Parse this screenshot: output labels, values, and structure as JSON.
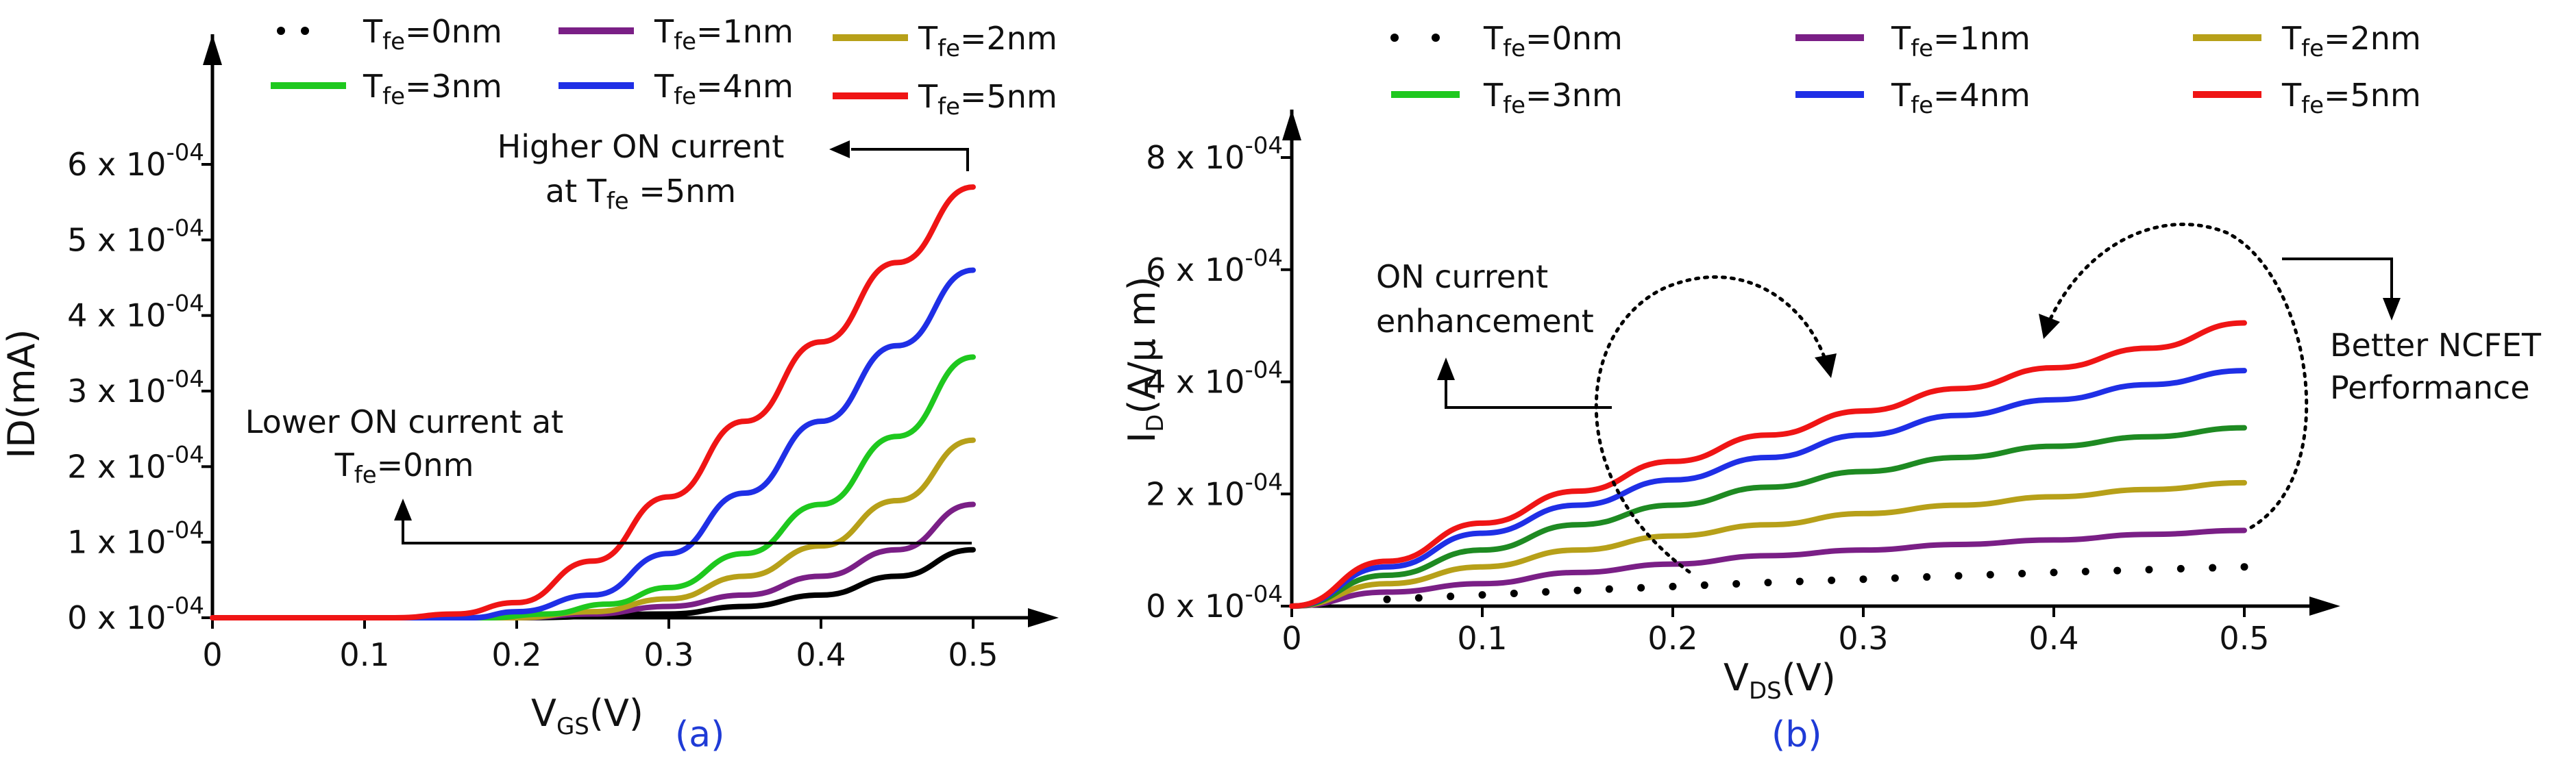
{
  "colors": {
    "t0": "#000000",
    "t1": "#7a1f86",
    "t2": "#b7a019",
    "t3": "#1ec81e",
    "t4": "#1f2fe6",
    "t5": "#ef1515",
    "t3b": "#1e8a22"
  },
  "chart_data": [
    {
      "type": "line",
      "panel_label": "(a)",
      "xlabel": {
        "main": "V",
        "sub": "GS",
        "rest": "(V)"
      },
      "ylabel": "ID(mA)",
      "xlim": [
        0,
        0.55
      ],
      "ylim": [
        0,
        0.00065
      ],
      "x_ticks": [
        "0",
        "0.1",
        "0.2",
        "0.3",
        "0.4",
        "0.5"
      ],
      "y_ticks": [
        {
          "value": 0,
          "mant": "0 x 10",
          "exp": "-04"
        },
        {
          "value": 0.0001,
          "mant": "1 x 10",
          "exp": "-04"
        },
        {
          "value": 0.0002,
          "mant": "2 x 10",
          "exp": "-04"
        },
        {
          "value": 0.0003,
          "mant": "3 x 10",
          "exp": "-04"
        },
        {
          "value": 0.0004,
          "mant": "4 x 10",
          "exp": "-04"
        },
        {
          "value": 0.0005,
          "mant": "5 x 10",
          "exp": "-04"
        },
        {
          "value": 0.0006,
          "mant": "6 x 10",
          "exp": "-04"
        }
      ],
      "legend": [
        {
          "pre": "T",
          "sub": "fe",
          "post": "=0nm",
          "style": "dots",
          "color": "#000000"
        },
        {
          "pre": "T",
          "sub": "fe",
          "post": "=1nm",
          "style": "line",
          "color": "#7a1f86"
        },
        {
          "pre": "T",
          "sub": "fe",
          "post": "=2nm",
          "style": "line",
          "color": "#b7a019"
        },
        {
          "pre": "T",
          "sub": "fe",
          "post": "=3nm",
          "style": "line",
          "color": "#1ec81e"
        },
        {
          "pre": "T",
          "sub": "fe",
          "post": "=4nm",
          "style": "line",
          "color": "#1f2fe6"
        },
        {
          "pre": "T",
          "sub": "fe",
          "post": "=5nm",
          "style": "line",
          "color": "#ef1515"
        }
      ],
      "series": [
        {
          "color": "#000000",
          "x": [
            0.0,
            0.2,
            0.3,
            0.35,
            0.4,
            0.45,
            0.5
          ],
          "y": [
            0.0,
            0.0,
            5e-06,
            1.5e-05,
            3e-05,
            5.5e-05,
            9e-05
          ]
        },
        {
          "color": "#7a1f86",
          "x": [
            0.0,
            0.2,
            0.25,
            0.3,
            0.35,
            0.4,
            0.45,
            0.5
          ],
          "y": [
            0.0,
            0.0,
            5e-06,
            1.5e-05,
            3e-05,
            5.5e-05,
            9e-05,
            0.00015
          ]
        },
        {
          "color": "#b7a019",
          "x": [
            0.0,
            0.2,
            0.25,
            0.3,
            0.35,
            0.4,
            0.45,
            0.5
          ],
          "y": [
            0.0,
            0.0,
            8e-06,
            2.5e-05,
            5.5e-05,
            9.5e-05,
            0.000155,
            0.000235
          ]
        },
        {
          "color": "#1ec81e",
          "x": [
            0.0,
            0.18,
            0.22,
            0.26,
            0.3,
            0.35,
            0.4,
            0.45,
            0.5
          ],
          "y": [
            0.0,
            0.0,
            5e-06,
            1.8e-05,
            4e-05,
            8.5e-05,
            0.00015,
            0.00024,
            0.000345
          ]
        },
        {
          "color": "#1f2fe6",
          "x": [
            0.0,
            0.17,
            0.2,
            0.25,
            0.3,
            0.35,
            0.4,
            0.45,
            0.5
          ],
          "y": [
            0.0,
            0.0,
            8e-06,
            3e-05,
            8.5e-05,
            0.000165,
            0.00026,
            0.00036,
            0.00046
          ]
        },
        {
          "color": "#ef1515",
          "x": [
            0.0,
            0.12,
            0.16,
            0.2,
            0.25,
            0.3,
            0.35,
            0.4,
            0.45,
            0.5
          ],
          "y": [
            0.0,
            0.0,
            5e-06,
            2e-05,
            7.5e-05,
            0.00016,
            0.00026,
            0.000365,
            0.00047,
            0.00057
          ]
        }
      ],
      "annotations": [
        {
          "lines": [
            "Higher ON current"
          ]
        },
        {
          "pre": "at T",
          "sub": "fe",
          "post": " =5nm"
        },
        {
          "lines": [
            "Lower ON current at"
          ]
        },
        {
          "pre": "T",
          "sub": "fe",
          "post": "=0nm"
        }
      ]
    },
    {
      "type": "line",
      "panel_label": "(b)",
      "xlabel": {
        "main": "V",
        "sub": "DS",
        "rest": "(V)"
      },
      "ylabel": {
        "main": "I",
        "sub": "D",
        "rest": "(A/μ m)"
      },
      "xlim": [
        0,
        0.55
      ],
      "ylim": [
        0,
        0.00095
      ],
      "x_ticks": [
        "0",
        "0.1",
        "0.2",
        "0.3",
        "0.4",
        "0.5"
      ],
      "y_ticks": [
        {
          "value": 0,
          "mant": "0 x 10",
          "exp": "-04"
        },
        {
          "value": 0.0002,
          "mant": "2 x 10",
          "exp": "-04"
        },
        {
          "value": 0.0004,
          "mant": "4 x 10",
          "exp": "-04"
        },
        {
          "value": 0.0006,
          "mant": "6 x 10",
          "exp": "-04"
        },
        {
          "value": 0.0008,
          "mant": "8 x 10",
          "exp": "-04"
        }
      ],
      "legend": [
        {
          "pre": "T",
          "sub": "fe",
          "post": "=0nm",
          "style": "dots",
          "color": "#000000"
        },
        {
          "pre": "T",
          "sub": "fe",
          "post": "=1nm",
          "style": "line",
          "color": "#7a1f86"
        },
        {
          "pre": "T",
          "sub": "fe",
          "post": "=2nm",
          "style": "line",
          "color": "#b7a019"
        },
        {
          "pre": "T",
          "sub": "fe",
          "post": "=3nm",
          "style": "line",
          "color": "#1ec81e"
        },
        {
          "pre": "T",
          "sub": "fe",
          "post": "=4nm",
          "style": "line",
          "color": "#1f2fe6"
        },
        {
          "pre": "T",
          "sub": "fe",
          "post": "=5nm",
          "style": "line",
          "color": "#ef1515"
        }
      ],
      "series": [
        {
          "color": "#000000",
          "style": "dots",
          "x": [
            0.0,
            0.05,
            0.1,
            0.15,
            0.2,
            0.25,
            0.3,
            0.35,
            0.4,
            0.45,
            0.5
          ],
          "y": [
            0.0,
            1.2e-05,
            2e-05,
            2.8e-05,
            3.5e-05,
            4.2e-05,
            4.8e-05,
            5.4e-05,
            6e-05,
            6.5e-05,
            7e-05
          ]
        },
        {
          "color": "#7a1f86",
          "x": [
            0.0,
            0.05,
            0.1,
            0.15,
            0.2,
            0.25,
            0.3,
            0.35,
            0.4,
            0.45,
            0.5
          ],
          "y": [
            0.0,
            2.5e-05,
            4e-05,
            6e-05,
            7.5e-05,
            9e-05,
            0.0001,
            0.00011,
            0.000118,
            0.000128,
            0.000135
          ]
        },
        {
          "color": "#b7a019",
          "x": [
            0.0,
            0.05,
            0.1,
            0.15,
            0.2,
            0.25,
            0.3,
            0.35,
            0.4,
            0.45,
            0.5
          ],
          "y": [
            0.0,
            4e-05,
            7e-05,
            0.0001,
            0.000125,
            0.000145,
            0.000165,
            0.00018,
            0.000195,
            0.000208,
            0.00022
          ]
        },
        {
          "color": "#1e8a22",
          "x": [
            0.0,
            0.05,
            0.1,
            0.15,
            0.2,
            0.25,
            0.3,
            0.35,
            0.4,
            0.45,
            0.5
          ],
          "y": [
            0.0,
            5.5e-05,
            0.0001,
            0.000145,
            0.00018,
            0.000212,
            0.00024,
            0.000265,
            0.000285,
            0.000302,
            0.000318
          ]
        },
        {
          "color": "#1f2fe6",
          "x": [
            0.0,
            0.05,
            0.1,
            0.15,
            0.2,
            0.25,
            0.3,
            0.35,
            0.4,
            0.45,
            0.5
          ],
          "y": [
            0.0,
            7e-05,
            0.00013,
            0.00018,
            0.000225,
            0.000265,
            0.000305,
            0.00034,
            0.000368,
            0.000395,
            0.00042
          ]
        },
        {
          "color": "#ef1515",
          "x": [
            0.0,
            0.05,
            0.1,
            0.15,
            0.2,
            0.25,
            0.3,
            0.35,
            0.4,
            0.45,
            0.5
          ],
          "y": [
            0.0,
            8e-05,
            0.000148,
            0.000205,
            0.000258,
            0.000305,
            0.000348,
            0.000388,
            0.000425,
            0.00046,
            0.000505
          ]
        }
      ],
      "annotations": [
        {
          "lines": [
            "ON current",
            "enhancement"
          ]
        },
        {
          "lines": [
            "Better NCFET",
            "Performance"
          ]
        }
      ]
    }
  ]
}
